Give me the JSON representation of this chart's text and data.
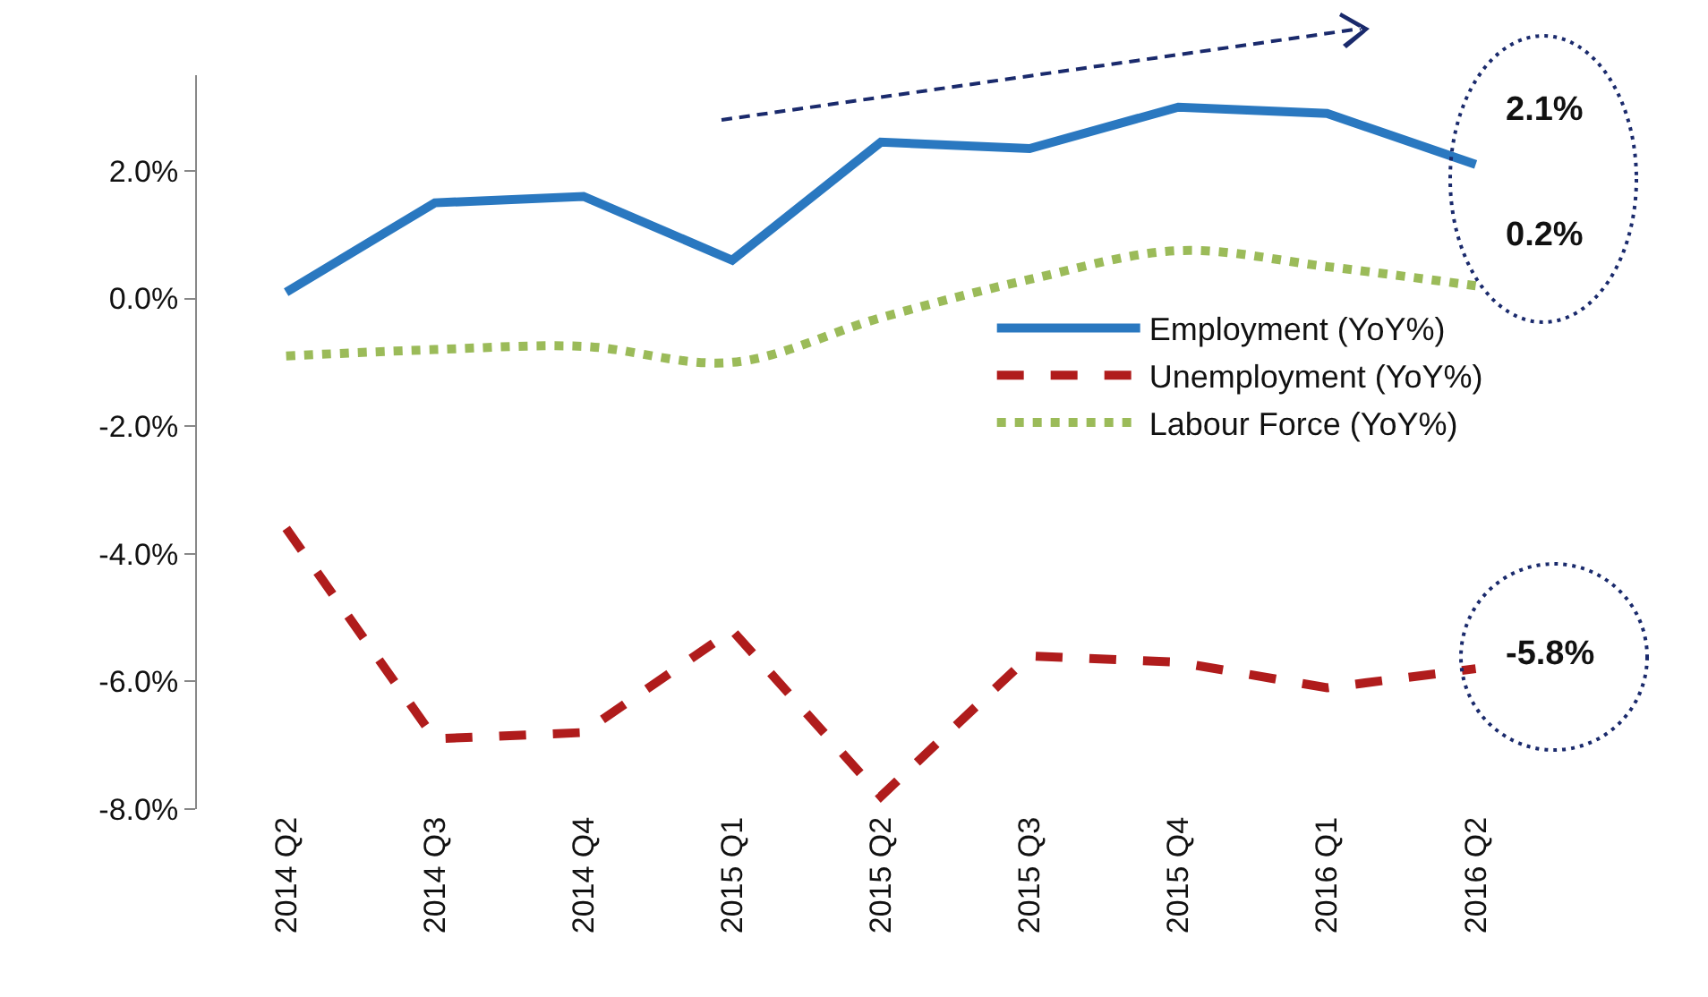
{
  "chart_data": {
    "type": "line",
    "categories": [
      "2014 Q2",
      "2014 Q3",
      "2014 Q4",
      "2015 Q1",
      "2015 Q2",
      "2015 Q3",
      "2015 Q4",
      "2016 Q1",
      "2016 Q2"
    ],
    "series": [
      {
        "name": "Employment (YoY%)",
        "color": "#2a78c0",
        "line_style": "solid",
        "values": [
          0.1,
          1.5,
          1.6,
          0.6,
          2.45,
          2.35,
          3.0,
          2.9,
          2.1
        ]
      },
      {
        "name": "Unemployment (YoY%)",
        "color": "#b01c1c",
        "line_style": "dashed",
        "values": [
          -3.6,
          -6.9,
          -6.8,
          -5.2,
          -7.8,
          -5.6,
          -5.7,
          -6.1,
          -5.8
        ]
      },
      {
        "name": "Labour Force (YoY%)",
        "color": "#9bbb59",
        "line_style": "dotted",
        "values": [
          -0.9,
          -0.8,
          -0.75,
          -1.0,
          -0.3,
          0.3,
          0.75,
          0.5,
          0.2
        ]
      }
    ],
    "ylim": [
      -8,
      3.5
    ],
    "yticks": [
      {
        "value": -8,
        "label": "-8.0%"
      },
      {
        "value": -6,
        "label": "-6.0%"
      },
      {
        "value": -4,
        "label": "-4.0%"
      },
      {
        "value": -2,
        "label": "-2.0%"
      },
      {
        "value": 0,
        "label": "0.0%"
      },
      {
        "value": 2,
        "label": "2.0%"
      }
    ],
    "grid": false,
    "legend": "right",
    "marker": "none",
    "annotations": [
      {
        "text": "2.1%",
        "x": "2016 Q2",
        "y": 2.1
      },
      {
        "text": "0.2%",
        "x": "2016 Q2",
        "y": 0.2
      },
      {
        "text": "-5.8%",
        "x": "2016 Q2",
        "y": -5.8
      }
    ]
  }
}
